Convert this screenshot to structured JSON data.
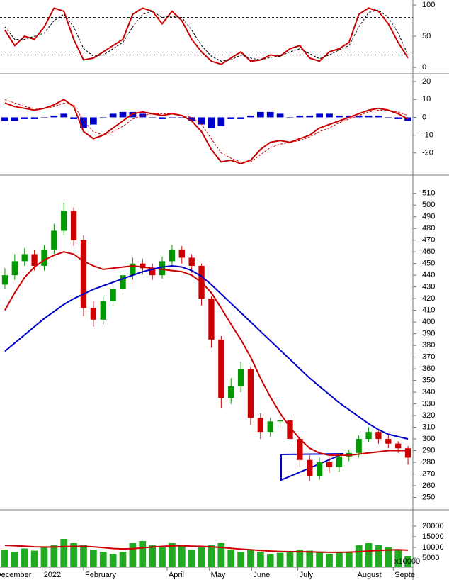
{
  "chart_data": [
    {
      "type": "line",
      "ylim": [
        -9,
        108
      ],
      "yticks": [
        0,
        50,
        100
      ],
      "ref_lines": [
        20,
        80
      ],
      "series": [
        {
          "kind": "line",
          "color": "#cc0000",
          "values": [
            60,
            35,
            50,
            45,
            65,
            95,
            90,
            45,
            12,
            15,
            25,
            35,
            45,
            85,
            95,
            90,
            70,
            90,
            75,
            45,
            25,
            10,
            5,
            15,
            25,
            10,
            12,
            20,
            18,
            30,
            35,
            15,
            10,
            25,
            30,
            40,
            85,
            95,
            90,
            70,
            40,
            15
          ]
        },
        {
          "kind": "line",
          "dashed": true,
          "color": "#000000",
          "values": [
            65,
            45,
            45,
            50,
            55,
            75,
            85,
            65,
            30,
            18,
            20,
            30,
            40,
            65,
            85,
            90,
            80,
            82,
            80,
            60,
            35,
            18,
            10,
            12,
            20,
            15,
            12,
            16,
            18,
            25,
            30,
            22,
            14,
            20,
            28,
            35,
            65,
            88,
            92,
            80,
            55,
            20
          ]
        }
      ]
    },
    {
      "type": "macd",
      "ylim": [
        -32,
        24
      ],
      "yticks": [
        -20,
        -10,
        0,
        10,
        20
      ],
      "series": [
        {
          "kind": "bar",
          "color": "#0000cc",
          "values": [
            -2,
            -2,
            -1,
            -1,
            0,
            1,
            2,
            -1,
            -6,
            -4,
            0,
            2,
            3,
            3,
            2,
            0,
            -1,
            0,
            0,
            -2,
            -4,
            -6,
            -5,
            -1,
            -1,
            1,
            3,
            3,
            2,
            0,
            1,
            1,
            2,
            2,
            1,
            1,
            1,
            1,
            1,
            0,
            -1,
            -2
          ]
        },
        {
          "kind": "line",
          "color": "#cc0000",
          "values": [
            8,
            6,
            5,
            4,
            5,
            7,
            10,
            6,
            -8,
            -12,
            -10,
            -6,
            -2,
            2,
            3,
            2,
            1,
            2,
            1,
            -2,
            -8,
            -18,
            -25,
            -24,
            -26,
            -24,
            -18,
            -14,
            -13,
            -14,
            -12,
            -10,
            -6,
            -4,
            -2,
            0,
            2,
            4,
            5,
            4,
            2,
            -1
          ]
        },
        {
          "kind": "line",
          "dashed": true,
          "color": "#cc0000",
          "values": [
            10,
            8,
            6,
            5,
            5,
            6,
            8,
            7,
            -2,
            -8,
            -10,
            -8,
            -5,
            -1,
            1,
            2,
            2,
            2,
            1,
            0,
            -4,
            -12,
            -20,
            -23,
            -25,
            -25,
            -21,
            -17,
            -15,
            -14,
            -13,
            -11,
            -8,
            -6,
            -3,
            -1,
            1,
            3,
            4,
            4,
            3,
            1
          ]
        }
      ]
    },
    {
      "type": "candlestick",
      "ylim": [
        240,
        525
      ],
      "yticks": [
        250,
        260,
        270,
        280,
        290,
        300,
        310,
        320,
        330,
        340,
        350,
        360,
        370,
        380,
        390,
        400,
        410,
        420,
        430,
        440,
        450,
        460,
        470,
        480,
        490,
        500,
        510
      ],
      "up_color": "#009900",
      "down_color": "#cc0000",
      "open": [
        432,
        440,
        452,
        458,
        448,
        462,
        478,
        495,
        470,
        412,
        402,
        418,
        428,
        440,
        450,
        446,
        440,
        452,
        462,
        455,
        448,
        420,
        385,
        335,
        345,
        360,
        318,
        306,
        315,
        316,
        300,
        282,
        268,
        280,
        276,
        285,
        288,
        300,
        306,
        300,
        296,
        292
      ],
      "high": [
        446,
        458,
        463,
        462,
        466,
        484,
        502,
        498,
        474,
        418,
        422,
        432,
        444,
        455,
        454,
        450,
        456,
        466,
        465,
        458,
        450,
        422,
        388,
        352,
        366,
        362,
        322,
        318,
        318,
        318,
        302,
        286,
        284,
        284,
        288,
        291,
        303,
        310,
        308,
        303,
        298,
        294
      ],
      "low": [
        428,
        436,
        448,
        444,
        444,
        458,
        474,
        465,
        405,
        396,
        398,
        414,
        424,
        436,
        441,
        436,
        437,
        448,
        450,
        442,
        414,
        378,
        326,
        330,
        340,
        312,
        300,
        302,
        310,
        295,
        276,
        264,
        265,
        271,
        272,
        281,
        284,
        297,
        296,
        292,
        288,
        278
      ],
      "close": [
        440,
        452,
        458,
        448,
        462,
        478,
        495,
        470,
        412,
        402,
        418,
        428,
        440,
        450,
        446,
        440,
        452,
        462,
        455,
        448,
        420,
        385,
        335,
        345,
        360,
        318,
        306,
        315,
        316,
        300,
        282,
        268,
        280,
        276,
        285,
        288,
        300,
        306,
        300,
        296,
        292,
        284
      ],
      "series": [
        {
          "kind": "line",
          "color": "#cc0000",
          "values": [
            410,
            425,
            438,
            447,
            453,
            457,
            460,
            458,
            452,
            448,
            445,
            446,
            447,
            448,
            447,
            446,
            445,
            444,
            443,
            440,
            434,
            425,
            412,
            398,
            385,
            370,
            352,
            336,
            322,
            310,
            300,
            292,
            288,
            286,
            286,
            286,
            287,
            288,
            289,
            290,
            290,
            290
          ]
        },
        {
          "kind": "line",
          "color": "#0000cc",
          "values": [
            375,
            382,
            389,
            396,
            403,
            409,
            415,
            420,
            424,
            428,
            431,
            434,
            437,
            440,
            443,
            445,
            447,
            448,
            447,
            444,
            439,
            432,
            424,
            416,
            408,
            400,
            392,
            384,
            376,
            368,
            360,
            352,
            345,
            338,
            331,
            325,
            319,
            313,
            308,
            304,
            302,
            300
          ]
        }
      ]
    },
    {
      "type": "volume",
      "ylim": [
        700,
        27300
      ],
      "yticks": [
        5000,
        10000,
        15000,
        20000
      ],
      "multiplier_label": "x10000",
      "xlim": [
        0,
        42
      ],
      "xticks": [
        {
          "value": -0.6,
          "label": "December"
        },
        {
          "value": 4.3,
          "label": "2022"
        },
        {
          "value": 8.5,
          "label": "February"
        },
        {
          "value": 17,
          "label": "April"
        },
        {
          "value": 21.3,
          "label": "May"
        },
        {
          "value": 25.6,
          "label": "June"
        },
        {
          "value": 30.3,
          "label": "July"
        },
        {
          "value": 36.2,
          "label": "August"
        },
        {
          "value": 40,
          "label": "Septe"
        }
      ],
      "series": [
        {
          "kind": "bar",
          "color": "#22aa22",
          "values": [
            9000,
            8000,
            9500,
            8500,
            10000,
            11000,
            14000,
            12000,
            11000,
            9000,
            8000,
            7000,
            8000,
            12000,
            13000,
            11000,
            10000,
            12000,
            11000,
            9000,
            10000,
            11000,
            12000,
            9000,
            8000,
            9000,
            8000,
            7000,
            7500,
            8000,
            9000,
            8500,
            8000,
            7000,
            7500,
            8000,
            11000,
            12000,
            11000,
            10000,
            9000,
            6000
          ]
        },
        {
          "kind": "line",
          "color": "#cc0000",
          "values": [
            11000,
            10800,
            10600,
            10300,
            10200,
            10200,
            10400,
            10500,
            10500,
            10300,
            9900,
            9500,
            9300,
            9400,
            9800,
            10200,
            10500,
            10700,
            10800,
            10600,
            10500,
            10300,
            10000,
            9600,
            9200,
            8900,
            8600,
            8300,
            8100,
            8000,
            8000,
            7900,
            7800,
            7700,
            7700,
            7800,
            8000,
            8300,
            8600,
            8800,
            8900,
            8700
          ]
        }
      ]
    }
  ]
}
